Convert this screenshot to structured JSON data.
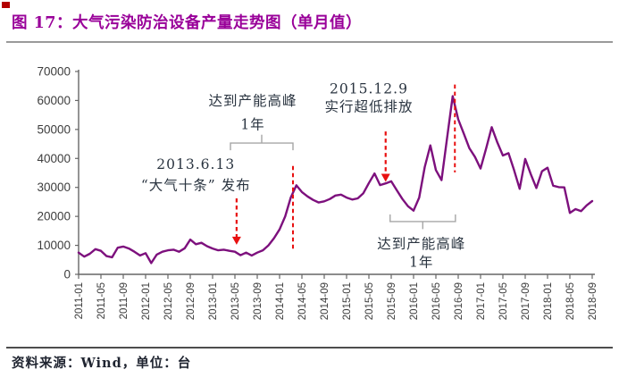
{
  "title": {
    "text": "图 17：大气污染防治设备产量走势图（单月值）",
    "color": "#990099"
  },
  "footer": {
    "text": "资料来源：Wind，单位：台",
    "color": "#1f2430"
  },
  "axis": {
    "color": "#666666",
    "tick_label_color": "#3d3d3d"
  },
  "chart_data": {
    "type": "line",
    "title": "大气污染防治设备产量走势图（单月值）",
    "unit": "台",
    "x_start": "2011-01",
    "x_end": "2018-09",
    "x_tick_labels": [
      "2011-01",
      "2011-05",
      "2011-09",
      "2012-01",
      "2012-05",
      "2012-09",
      "2013-01",
      "2013-05",
      "2013-09",
      "2014-01",
      "2014-05",
      "2014-09",
      "2015-01",
      "2015-05",
      "2015-09",
      "2016-01",
      "2016-05",
      "2016-09",
      "2017-01",
      "2017-05",
      "2017-09",
      "2018-01",
      "2018-05",
      "2018-09"
    ],
    "ylim": [
      0,
      70000
    ],
    "y_ticks": [
      0,
      10000,
      20000,
      30000,
      40000,
      50000,
      60000,
      70000
    ],
    "grid": false,
    "legend": "none",
    "series": [
      {
        "name": "大气污染防治设备产量",
        "color": "#7d107d",
        "values": [
          7500,
          6100,
          7100,
          8700,
          8100,
          6300,
          5900,
          9200,
          9600,
          8900,
          7800,
          6500,
          7300,
          3900,
          6800,
          7800,
          8300,
          8500,
          7800,
          9000,
          12000,
          10400,
          10900,
          9700,
          8900,
          8300,
          8500,
          8100,
          7800,
          6600,
          7500,
          6500,
          7500,
          8300,
          10000,
          12500,
          15500,
          20000,
          26500,
          30700,
          28400,
          26900,
          25700,
          24800,
          25200,
          26000,
          27200,
          27500,
          26500,
          25800,
          26200,
          28000,
          31500,
          34800,
          30800,
          31400,
          32100,
          29000,
          26000,
          23500,
          22000,
          26500,
          37000,
          44500,
          36000,
          32500,
          47000,
          61500,
          53500,
          48500,
          43500,
          40500,
          36500,
          43500,
          50800,
          45500,
          41000,
          41800,
          36000,
          29500,
          39800,
          34500,
          29800,
          35600,
          36800,
          30600,
          30100,
          30000,
          21200,
          22500,
          21800,
          23800,
          25300
        ]
      }
    ],
    "annotations": [
      {
        "id": "label-2013-policy",
        "type": "text",
        "lines": [
          "2013.6.13",
          "“大气十条” 发布"
        ],
        "month": 21.0,
        "line_values": [
          37600,
          30400
        ],
        "color": "#2a3440"
      },
      {
        "id": "arrow-2013-policy",
        "type": "dashed-arrow",
        "month": 28.3,
        "value_from": 26200,
        "value_to": 10200,
        "color": "#e81010"
      },
      {
        "id": "label-capacity-peak-2014",
        "type": "text",
        "lines": [
          "达到产能高峰",
          "1年"
        ],
        "month": 31.2,
        "line_values": [
          59500,
          51300
        ],
        "color": "#2a3440"
      },
      {
        "id": "bracket-2014",
        "type": "bracket",
        "stem": "up",
        "month_from": 27.2,
        "month_to": 38.4,
        "value": 45300,
        "stem_value": 48200,
        "color": "#a6a6a6"
      },
      {
        "id": "vline-peak-2014",
        "type": "dashed-line",
        "month": 38.4,
        "value_from": 37400,
        "value_to": 8000,
        "color": "#e81010"
      },
      {
        "id": "label-2015-policy",
        "type": "text",
        "lines": [
          "2015.12.9",
          "实行超低排放"
        ],
        "month": 52.0,
        "line_values": [
          63700,
          57500
        ],
        "color": "#2a3440"
      },
      {
        "id": "arrow-2015-policy",
        "type": "dashed-arrow",
        "month": 55.0,
        "value_from": 49300,
        "value_to": 31900,
        "color": "#e81010"
      },
      {
        "id": "vline-peak-2016",
        "type": "dashed-line",
        "month": 67.4,
        "value_from": 65500,
        "value_to": 35200,
        "color": "#e81010"
      },
      {
        "id": "bracket-2016",
        "type": "bracket",
        "stem": "down",
        "month_from": 55.8,
        "month_to": 67.5,
        "value": 18200,
        "stem_value": 15600,
        "color": "#a6a6a6"
      },
      {
        "id": "label-capacity-peak-2016",
        "type": "text",
        "lines": [
          "达到产能高峰",
          "1年"
        ],
        "month": 61.4,
        "line_values": [
          10200,
          3800
        ],
        "color": "#2a3440"
      }
    ]
  }
}
